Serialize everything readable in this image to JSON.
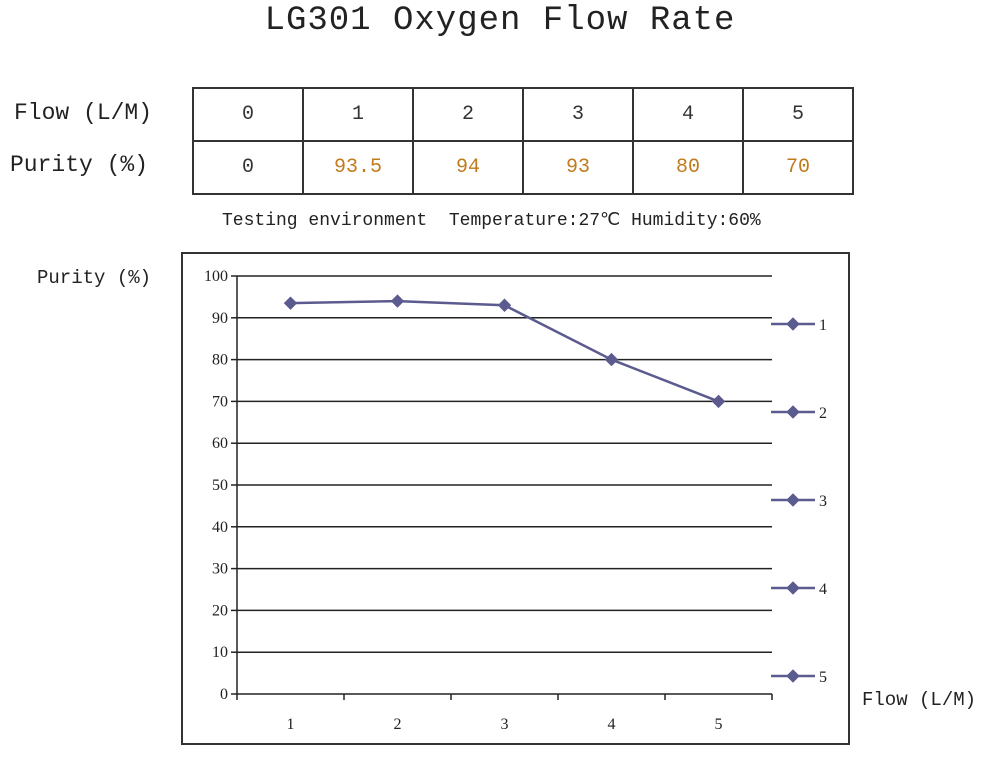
{
  "title": "LG301 Oxygen Flow Rate",
  "table": {
    "flow_label": "Flow (L/M)",
    "purity_label": "Purity (%)",
    "flow": [
      "0",
      "1",
      "2",
      "3",
      "4",
      "5"
    ],
    "purity": [
      "0",
      "93.5",
      "94",
      "93",
      "80",
      "70"
    ]
  },
  "environment": "Testing environment  Temperature:27℃ Humidity:60%",
  "colors": {
    "series": "#5b5b8f",
    "purity_values": "#c07a1a"
  },
  "chart_data": {
    "type": "line",
    "title": "",
    "ylabel": "Purity (%)",
    "xlabel": "Flow (L/M)",
    "categories": [
      "1",
      "2",
      "3",
      "4",
      "5"
    ],
    "series": [
      {
        "name": "Purity",
        "values": [
          93.5,
          94,
          93,
          80,
          70
        ]
      }
    ],
    "ylim": [
      0,
      100
    ],
    "yticks": [
      0,
      10,
      20,
      30,
      40,
      50,
      60,
      70,
      80,
      90,
      100
    ],
    "legend": [
      "1",
      "2",
      "3",
      "4",
      "5"
    ],
    "legend_position": "right",
    "grid": true
  }
}
